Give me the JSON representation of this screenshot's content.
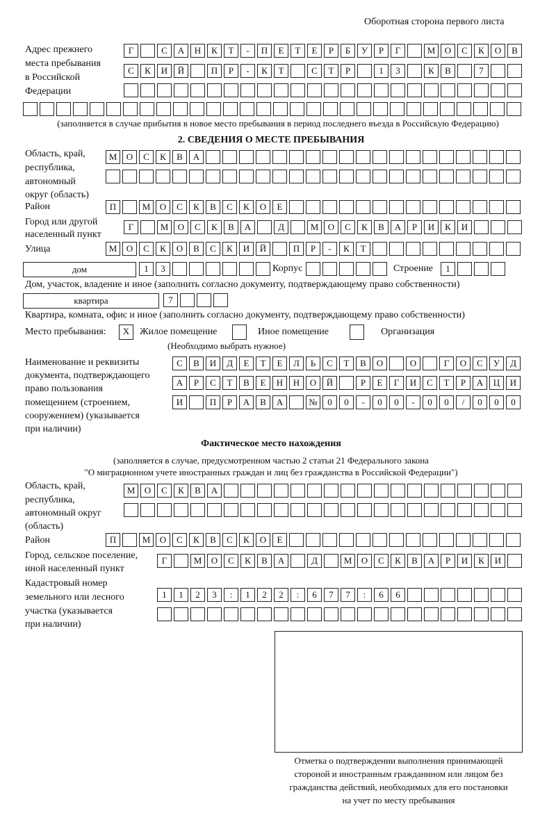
{
  "header": {
    "page_side": "Оборотная сторона первого листа"
  },
  "previous_address": {
    "label": [
      "Адрес прежнего",
      "места пребывания",
      "в Российской",
      "Федерации"
    ],
    "rows": [
      [
        "Г",
        "",
        "С",
        "А",
        "Н",
        "К",
        "Т",
        "-",
        "П",
        "Е",
        "Т",
        "Е",
        "Р",
        "Б",
        "У",
        "Р",
        "Г",
        "",
        "М",
        "О",
        "С",
        "К",
        "О",
        "В"
      ],
      [
        "С",
        "К",
        "И",
        "Й",
        "",
        "П",
        "Р",
        "-",
        "К",
        "Т",
        "",
        "С",
        "Т",
        "Р",
        "",
        "1",
        "3",
        "",
        "К",
        "В",
        "",
        "7",
        "",
        ""
      ],
      [
        "",
        "",
        "",
        "",
        "",
        "",
        "",
        "",
        "",
        "",
        "",
        "",
        "",
        "",
        "",
        "",
        "",
        "",
        "",
        "",
        "",
        "",
        "",
        ""
      ],
      [
        "",
        "",
        "",
        "",
        "",
        "",
        "",
        "",
        "",
        "",
        "",
        "",
        "",
        "",
        "",
        "",
        "",
        "",
        "",
        "",
        "",
        "",
        "",
        "",
        "",
        "",
        "",
        "",
        "",
        ""
      ]
    ],
    "note": "(заполняется в случае прибытия в новое место пребывания в период последнего въезда в Российскую Федерацию)"
  },
  "section2": {
    "title": "2. СВЕДЕНИЯ О МЕСТЕ ПРЕБЫВАНИЯ",
    "region": {
      "label": [
        "Область, край,",
        "республика,",
        "автономный",
        "округ (область)"
      ],
      "rows": [
        [
          "М",
          "О",
          "С",
          "К",
          "В",
          "А",
          "",
          "",
          "",
          "",
          "",
          "",
          "",
          "",
          "",
          "",
          "",
          "",
          "",
          "",
          "",
          "",
          "",
          "",
          ""
        ],
        [
          "",
          "",
          "",
          "",
          "",
          "",
          "",
          "",
          "",
          "",
          "",
          "",
          "",
          "",
          "",
          "",
          "",
          "",
          "",
          "",
          "",
          "",
          "",
          "",
          ""
        ]
      ]
    },
    "district": {
      "label": "Район",
      "row": [
        "П",
        "",
        "М",
        "О",
        "С",
        "К",
        "В",
        "С",
        "К",
        "О",
        "Е",
        "",
        "",
        "",
        "",
        "",
        "",
        "",
        "",
        "",
        "",
        "",
        "",
        "",
        ""
      ]
    },
    "city": {
      "label": [
        "Город или другой",
        "населенный пункт"
      ],
      "row": [
        "Г",
        "",
        "М",
        "О",
        "С",
        "К",
        "В",
        "А",
        "",
        "Д",
        "",
        "М",
        "О",
        "С",
        "К",
        "В",
        "А",
        "Р",
        "И",
        "К",
        "И",
        "",
        "",
        ""
      ]
    },
    "street": {
      "label": "Улица",
      "row": [
        "М",
        "О",
        "С",
        "К",
        "О",
        "В",
        "С",
        "К",
        "И",
        "Й",
        "",
        "П",
        "Р",
        "-",
        "К",
        "Т",
        "",
        "",
        "",
        "",
        "",
        "",
        "",
        "",
        ""
      ]
    },
    "house": {
      "type": "дом",
      "number": [
        "1",
        "3",
        "",
        "",
        "",
        "",
        "",
        ""
      ],
      "korpus_label": "Корпус",
      "korpus": [
        "",
        "",
        "",
        "",
        ""
      ],
      "stroenie_label": "Строение",
      "stroenie": [
        "1",
        "",
        "",
        ""
      ],
      "note": "Дом, участок, владение и иное (заполнить согласно документу, подтверждающему право собственности)"
    },
    "apartment": {
      "type": "квартира",
      "number": [
        "7",
        "",
        "",
        ""
      ],
      "note": "Квартира, комната, офис и иное (заполнить согласно документу, подтверждающему право собственности)"
    },
    "place_type": {
      "label": "Место пребывания:",
      "options": [
        {
          "label": "Жилое помещение",
          "mark": "X"
        },
        {
          "label": "Иное помещение",
          "mark": ""
        },
        {
          "label": "Организация",
          "mark": ""
        }
      ],
      "note": "(Необходимо выбрать нужное)"
    },
    "document": {
      "label": [
        "Наименование и реквизиты",
        "документа, подтверждающего",
        "право пользования",
        "помещением (строением,",
        "сооружением) (указывается",
        "при наличии)"
      ],
      "rows": [
        [
          "С",
          "В",
          "И",
          "Д",
          "Е",
          "Т",
          "Е",
          "Л",
          "Ь",
          "С",
          "Т",
          "В",
          "О",
          "",
          "О",
          "",
          "Г",
          "О",
          "С",
          "У",
          "Д"
        ],
        [
          "А",
          "Р",
          "С",
          "Т",
          "В",
          "Е",
          "Н",
          "Н",
          "О",
          "Й",
          "",
          "Р",
          "Е",
          "Г",
          "И",
          "С",
          "Т",
          "Р",
          "А",
          "Ц",
          "И"
        ],
        [
          "И",
          "",
          "П",
          "Р",
          "А",
          "В",
          "А",
          "",
          "№",
          "0",
          "0",
          "-",
          "0",
          "0",
          "-",
          "0",
          "0",
          "/",
          "0",
          "0",
          "0"
        ]
      ]
    }
  },
  "actual": {
    "title": "Фактическое место нахождения",
    "note": [
      "(заполняется в случае, предусмотренном частью 2 статьи 21 Федерального закона",
      "\"О миграционном учете иностранных граждан и лиц без гражданства в Российской Федерации\")"
    ],
    "region": {
      "label": [
        "Область, край,",
        "республика,",
        "автономный округ",
        "(область)"
      ],
      "rows": [
        [
          "М",
          "О",
          "С",
          "К",
          "В",
          "А",
          "",
          "",
          "",
          "",
          "",
          "",
          "",
          "",
          "",
          "",
          "",
          "",
          "",
          "",
          "",
          "",
          "",
          ""
        ],
        [
          "",
          "",
          "",
          "",
          "",
          "",
          "",
          "",
          "",
          "",
          "",
          "",
          "",
          "",
          "",
          "",
          "",
          "",
          "",
          "",
          "",
          "",
          "",
          ""
        ]
      ]
    },
    "district": {
      "label": "Район",
      "row": [
        "П",
        "",
        "М",
        "О",
        "С",
        "К",
        "В",
        "С",
        "К",
        "О",
        "Е",
        "",
        "",
        "",
        "",
        "",
        "",
        "",
        "",
        "",
        "",
        "",
        "",
        "",
        ""
      ]
    },
    "city": {
      "label": [
        "Город, сельское поселение,",
        "иной населенный пункт"
      ],
      "row": [
        "Г",
        "",
        "М",
        "О",
        "С",
        "К",
        "В",
        "А",
        "",
        "Д",
        "",
        "М",
        "О",
        "С",
        "К",
        "В",
        "А",
        "Р",
        "И",
        "К",
        "И",
        ""
      ]
    },
    "cadastral": {
      "label": [
        "Кадастровый номер",
        "земельного или лесного",
        "участка (указывается",
        "при наличии)"
      ],
      "rows": [
        [
          "1",
          "1",
          "2",
          "3",
          ":",
          "1",
          "2",
          "2",
          ":",
          "6",
          "7",
          "7",
          ":",
          "6",
          "6",
          "",
          "",
          "",
          "",
          "",
          "",
          ""
        ],
        [
          "",
          "",
          "",
          "",
          "",
          "",
          "",
          "",
          "",
          "",
          "",
          "",
          "",
          "",
          "",
          "",
          "",
          "",
          "",
          "",
          "",
          ""
        ]
      ]
    }
  },
  "confirmation": {
    "caption": [
      "Отметка о подтверждении выполнения принимающей",
      "стороной и иностранным гражданином или лицом без",
      "гражданства действий, необходимых для его постановки",
      "на учет по месту пребывания"
    ]
  }
}
